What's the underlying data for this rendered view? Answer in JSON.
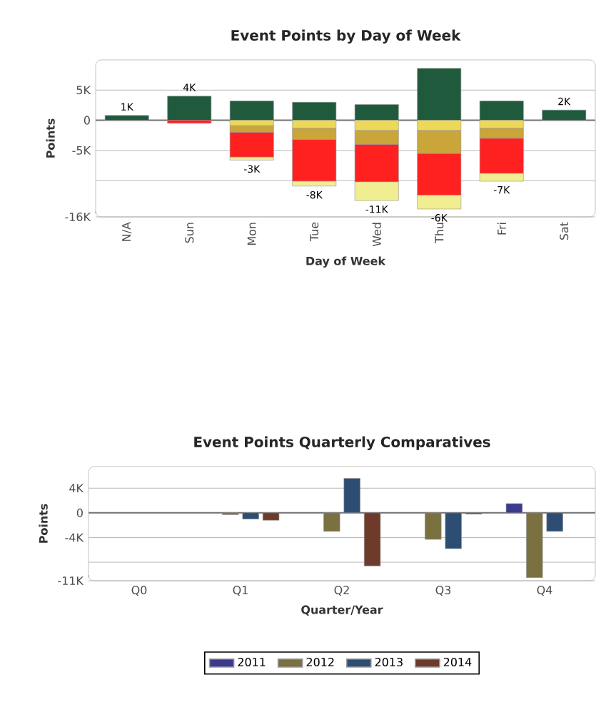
{
  "chart_data": [
    {
      "type": "bar",
      "title": "Event Points by Day of Week",
      "xlabel": "Day of Week",
      "ylabel": "Points",
      "stacked": true,
      "categories": [
        "N/A",
        "Sun",
        "Mon",
        "Tue",
        "Wed",
        "Thu",
        "Fri",
        "Sat"
      ],
      "series": [
        {
          "color": "#1f5a3c",
          "values": [
            0.8,
            4.0,
            3.2,
            3.0,
            2.6,
            8.6,
            3.2,
            1.7
          ]
        },
        {
          "color": "#ecd95a",
          "values": [
            null,
            null,
            -0.9,
            -1.3,
            -1.7,
            -1.7,
            -1.3,
            null
          ]
        },
        {
          "color": "#c9a53a",
          "values": [
            null,
            null,
            -1.1,
            -1.9,
            -2.3,
            -3.8,
            -1.7,
            null
          ]
        },
        {
          "color": "#ff2020",
          "values": [
            null,
            -0.5,
            -4.1,
            -6.9,
            -6.2,
            -6.9,
            -5.8,
            null
          ]
        },
        {
          "color": "#f0ee90",
          "values": [
            null,
            null,
            -0.5,
            -0.8,
            -3.1,
            -2.3,
            -1.3,
            null
          ]
        }
      ],
      "totals": [
        "1K",
        "4K",
        "-3K",
        "-8K",
        "-11K",
        "-6K",
        "-7K",
        "2K"
      ],
      "ylim": [
        -16,
        10
      ],
      "yticks": [
        {
          "value": 5,
          "label": "5K"
        },
        0,
        {
          "value": -5,
          "label": "-5K"
        },
        {
          "value": -10,
          "label": null
        },
        {
          "value": -16,
          "label": "-16K"
        }
      ],
      "grid": "y"
    },
    {
      "type": "bar",
      "title": "Event Points Quarterly Comparatives",
      "xlabel": "Quarter/Year",
      "ylabel": "Points",
      "categories": [
        "Q0",
        "Q1",
        "Q2",
        "Q3",
        "Q4"
      ],
      "series": [
        {
          "name": "2011",
          "color": "#3b3a8c",
          "values": [
            null,
            null,
            null,
            null,
            1.5
          ]
        },
        {
          "name": "2012",
          "color": "#7a7040",
          "values": [
            null,
            -0.3,
            -3.0,
            -4.3,
            -10.5
          ]
        },
        {
          "name": "2013",
          "color": "#2d4d73",
          "values": [
            null,
            -1.0,
            5.6,
            -5.8,
            -3.0
          ]
        },
        {
          "name": "2014",
          "color": "#6e3b2b",
          "values": [
            null,
            -1.2,
            -8.6,
            -0.2,
            null
          ]
        }
      ],
      "ylim": [
        -11,
        7.5
      ],
      "yticks": [
        {
          "value": 4,
          "label": "4K"
        },
        0,
        {
          "value": -4,
          "label": "-4K"
        },
        {
          "value": -8,
          "label": null
        },
        {
          "value": -11,
          "label": "-11K"
        }
      ],
      "grid": "y",
      "legend": "bottom"
    }
  ]
}
